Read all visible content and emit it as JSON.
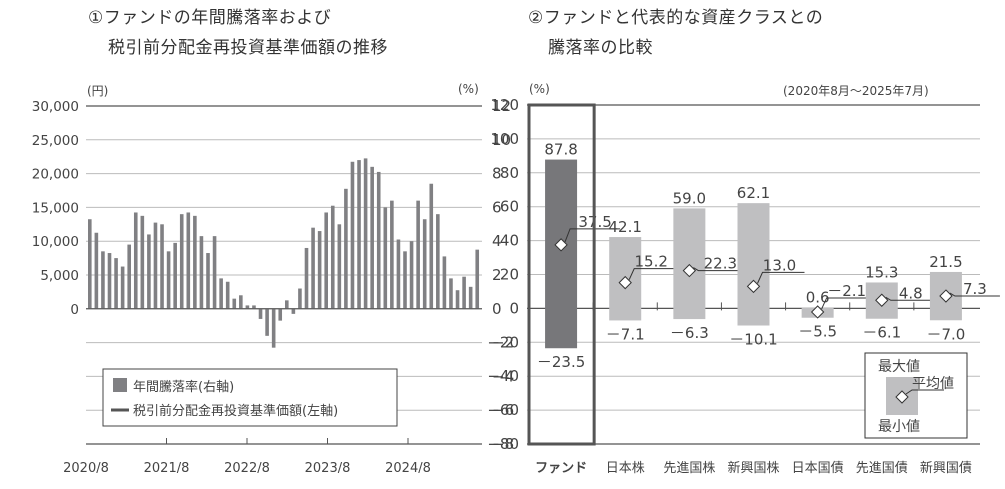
{
  "left_chart": {
    "title_line1": "①ファンドの年間騰落率および",
    "title_line2": "税引前分配金再投資基準価額の推移",
    "left_unit": "(円)",
    "right_unit": "(%)",
    "legend": {
      "bar_label": "年間騰落率(右軸)",
      "line_label": "税引前分配金再投資基準価額(左軸)"
    }
  },
  "right_chart": {
    "title_line1": "②ファンドと代表的な資産クラスとの",
    "title_line2": "騰落率の比較",
    "unit": "(%)",
    "period": "(2020年8月～2025年7月)",
    "legend": {
      "max": "最大値",
      "avg": "平均値",
      "min": "最小値"
    }
  },
  "chart_data": [
    {
      "type": "bar",
      "title": "ファンドの年間騰落率および税引前分配金再投資基準価額の推移",
      "xlabel": "",
      "ylabel_left": "(円)",
      "ylabel_right": "(%)",
      "left_axis": {
        "ticks": [
          "30,000",
          "25,000",
          "20,000",
          "15,000",
          "10,000",
          "5,000",
          "0"
        ],
        "range": [
          -20000,
          30000
        ]
      },
      "right_axis": {
        "ticks": [
          "12",
          "10",
          "8",
          "6",
          "4",
          "2",
          "0",
          "-2",
          "-4",
          "-6",
          "-8"
        ],
        "range": [
          -8,
          12
        ]
      },
      "x_tick_labels": [
        "2020/8",
        "2021/8",
        "2022/8",
        "2023/8",
        "2024/8"
      ],
      "grid": true,
      "legend_position": "bottom-left",
      "series": [
        {
          "name": "年間騰落率(右軸)",
          "type": "bar",
          "values": [
            5.3,
            4.5,
            3.4,
            3.3,
            3.0,
            2.5,
            3.8,
            5.7,
            5.5,
            4.4,
            5.1,
            5.0,
            3.4,
            3.9,
            5.6,
            5.7,
            5.5,
            4.3,
            3.3,
            4.3,
            1.8,
            1.6,
            0.6,
            0.8,
            0.2,
            0.2,
            -0.6,
            -1.6,
            -2.3,
            -0.7,
            0.5,
            -0.3,
            1.2,
            3.6,
            4.8,
            4.6,
            5.7,
            6.1,
            5.0,
            7.1,
            8.7,
            8.8,
            8.9,
            8.4,
            8.1,
            6.0,
            6.4,
            4.1,
            3.4,
            4.0,
            6.4,
            5.3,
            7.4,
            5.6,
            3.1,
            1.8,
            1.1,
            1.9,
            1.3,
            3.5
          ]
        },
        {
          "name": "税引前分配金再投資基準価額(左軸)",
          "type": "line",
          "values": []
        }
      ]
    },
    {
      "type": "bar",
      "title": "ファンドと代表的な資産クラスとの騰落率の比較",
      "ylabel": "(%)",
      "ylim": [
        -80,
        120
      ],
      "y_ticks": [
        "120",
        "100",
        "80",
        "60",
        "40",
        "20",
        "0",
        "-20",
        "-40",
        "-60",
        "-80"
      ],
      "grid": true,
      "legend_position": "bottom-right",
      "categories": [
        "ファンド",
        "日本株",
        "先進国株",
        "新興国株",
        "日本国債",
        "先進国債",
        "新興国債"
      ],
      "series": [
        {
          "name": "最大値",
          "values": [
            87.8,
            42.1,
            59.0,
            62.1,
            0.6,
            15.3,
            21.5
          ]
        },
        {
          "name": "平均値",
          "values": [
            37.5,
            15.2,
            22.3,
            13.0,
            -2.1,
            4.8,
            7.3
          ]
        },
        {
          "name": "最小値",
          "values": [
            -23.5,
            -7.1,
            -6.3,
            -10.1,
            -5.5,
            -6.1,
            -7.0
          ]
        }
      ],
      "labels": {
        "max": [
          "87.8",
          "42.1",
          "59.0",
          "62.1",
          "0.6",
          "15.3",
          "21.5"
        ],
        "avg": [
          "37.5",
          "15.2",
          "22.3",
          "13.0",
          "－2.1",
          "4.8",
          "7.3"
        ],
        "min": [
          "－23.5",
          "－7.1",
          "－6.3",
          "－10.1",
          "－5.5",
          "－6.1",
          "－7.0"
        ]
      },
      "colors": {
        "fund": "#77777a",
        "asset": "#bfbfc1"
      }
    }
  ]
}
